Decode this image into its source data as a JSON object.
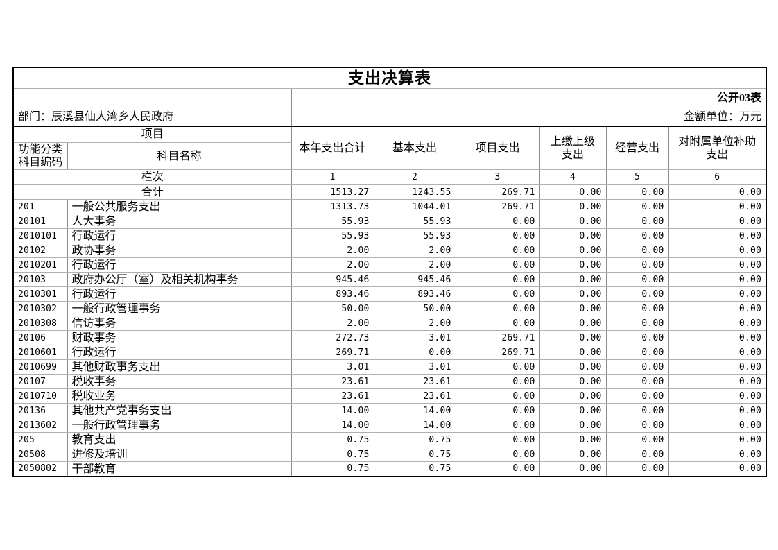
{
  "title": "支出决算表",
  "meta": {
    "public_label": "公开03表",
    "department": "部门：辰溪县仙人湾乡人民政府",
    "unit": "金额单位：万元"
  },
  "headers": {
    "project": "项目",
    "code_col": "功能分类科目编码",
    "name_col": "科目名称",
    "amount_cols": [
      "本年支出合计",
      "基本支出",
      "项目支出",
      "上缴上级支出",
      "经营支出",
      "对附属单位补助支出"
    ],
    "row_index_label": "栏次",
    "column_numbers": [
      "1",
      "2",
      "3",
      "4",
      "5",
      "6"
    ]
  },
  "rows": [
    {
      "code": "",
      "name": "合计",
      "span_label": true,
      "values": [
        "1513.27",
        "1243.55",
        "269.71",
        "0.00",
        "0.00",
        "0.00"
      ]
    },
    {
      "code": "201",
      "name": "一般公共服务支出",
      "values": [
        "1313.73",
        "1044.01",
        "269.71",
        "0.00",
        "0.00",
        "0.00"
      ]
    },
    {
      "code": "20101",
      "name": "人大事务",
      "values": [
        "55.93",
        "55.93",
        "0.00",
        "0.00",
        "0.00",
        "0.00"
      ]
    },
    {
      "code": "2010101",
      "name": "行政运行",
      "values": [
        "55.93",
        "55.93",
        "0.00",
        "0.00",
        "0.00",
        "0.00"
      ]
    },
    {
      "code": "20102",
      "name": "政协事务",
      "values": [
        "2.00",
        "2.00",
        "0.00",
        "0.00",
        "0.00",
        "0.00"
      ]
    },
    {
      "code": "2010201",
      "name": "行政运行",
      "values": [
        "2.00",
        "2.00",
        "0.00",
        "0.00",
        "0.00",
        "0.00"
      ]
    },
    {
      "code": "20103",
      "name": "政府办公厅（室）及相关机构事务",
      "values": [
        "945.46",
        "945.46",
        "0.00",
        "0.00",
        "0.00",
        "0.00"
      ]
    },
    {
      "code": "2010301",
      "name": "行政运行",
      "values": [
        "893.46",
        "893.46",
        "0.00",
        "0.00",
        "0.00",
        "0.00"
      ]
    },
    {
      "code": "2010302",
      "name": "一般行政管理事务",
      "values": [
        "50.00",
        "50.00",
        "0.00",
        "0.00",
        "0.00",
        "0.00"
      ]
    },
    {
      "code": "2010308",
      "name": "信访事务",
      "values": [
        "2.00",
        "2.00",
        "0.00",
        "0.00",
        "0.00",
        "0.00"
      ]
    },
    {
      "code": "20106",
      "name": "财政事务",
      "values": [
        "272.73",
        "3.01",
        "269.71",
        "0.00",
        "0.00",
        "0.00"
      ]
    },
    {
      "code": "2010601",
      "name": "行政运行",
      "values": [
        "269.71",
        "0.00",
        "269.71",
        "0.00",
        "0.00",
        "0.00"
      ]
    },
    {
      "code": "2010699",
      "name": "其他财政事务支出",
      "values": [
        "3.01",
        "3.01",
        "0.00",
        "0.00",
        "0.00",
        "0.00"
      ]
    },
    {
      "code": "20107",
      "name": "税收事务",
      "values": [
        "23.61",
        "23.61",
        "0.00",
        "0.00",
        "0.00",
        "0.00"
      ]
    },
    {
      "code": "2010710",
      "name": "税收业务",
      "values": [
        "23.61",
        "23.61",
        "0.00",
        "0.00",
        "0.00",
        "0.00"
      ]
    },
    {
      "code": "20136",
      "name": "其他共产党事务支出",
      "values": [
        "14.00",
        "14.00",
        "0.00",
        "0.00",
        "0.00",
        "0.00"
      ]
    },
    {
      "code": "2013602",
      "name": "一般行政管理事务",
      "values": [
        "14.00",
        "14.00",
        "0.00",
        "0.00",
        "0.00",
        "0.00"
      ]
    },
    {
      "code": "205",
      "name": "教育支出",
      "values": [
        "0.75",
        "0.75",
        "0.00",
        "0.00",
        "0.00",
        "0.00"
      ]
    },
    {
      "code": "20508",
      "name": "进修及培训",
      "values": [
        "0.75",
        "0.75",
        "0.00",
        "0.00",
        "0.00",
        "0.00"
      ]
    },
    {
      "code": "2050802",
      "name": "干部教育",
      "values": [
        "0.75",
        "0.75",
        "0.00",
        "0.00",
        "0.00",
        "0.00"
      ]
    }
  ],
  "colors": {
    "background": "#ffffff",
    "text": "#000000",
    "outer_border": "#000000",
    "grid_vertical": "#8c8c8c",
    "grid_horizontal": "#b0b0b0"
  }
}
